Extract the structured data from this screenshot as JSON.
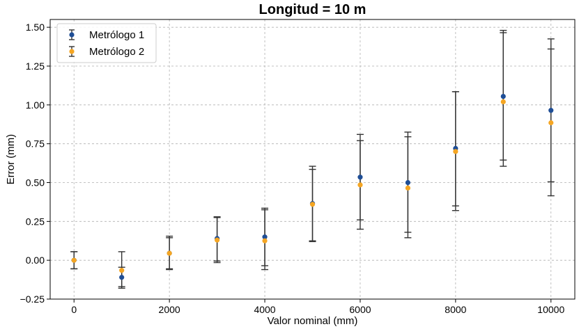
{
  "chart_data": {
    "type": "scatter",
    "title": "Longitud = 10 m",
    "xlabel": "Valor nominal (mm)",
    "ylabel": "Error (mm)",
    "xlim": [
      -500,
      10500
    ],
    "ylim": [
      -0.25,
      1.55
    ],
    "xticks": [
      0,
      2000,
      4000,
      6000,
      8000,
      10000
    ],
    "xtick_labels": [
      "0",
      "2000",
      "4000",
      "6000",
      "8000",
      "10000"
    ],
    "yticks": [
      -0.25,
      0,
      0.25,
      0.5,
      0.75,
      1.0,
      1.25,
      1.5
    ],
    "ytick_labels": [
      "−0.25",
      "0.00",
      "0.25",
      "0.50",
      "0.75",
      "1.00",
      "1.25",
      "1.50"
    ],
    "grid": true,
    "legend_position": "top-left",
    "x": [
      0,
      1000,
      2000,
      3000,
      4000,
      5000,
      6000,
      7000,
      8000,
      9000,
      10000
    ],
    "series": [
      {
        "name": "Metrólogo 1",
        "color": "#1f4e96",
        "y": [
          0.0,
          -0.11,
          0.045,
          0.14,
          0.15,
          0.365,
          0.535,
          0.5,
          0.72,
          1.055,
          0.965
        ],
        "err_low": [
          -0.055,
          -0.18,
          -0.055,
          -0.005,
          -0.035,
          0.125,
          0.26,
          0.18,
          0.35,
          0.645,
          0.505
        ],
        "err_high": [
          0.055,
          -0.045,
          0.145,
          0.28,
          0.335,
          0.605,
          0.81,
          0.825,
          1.085,
          1.465,
          1.425
        ]
      },
      {
        "name": "Metrólogo 2",
        "color": "#f5a623",
        "y": [
          0.0,
          -0.065,
          0.045,
          0.13,
          0.125,
          0.36,
          0.485,
          0.465,
          0.7,
          1.02,
          0.885
        ],
        "err_low": [
          -0.055,
          -0.17,
          -0.06,
          -0.015,
          -0.06,
          0.12,
          0.2,
          0.145,
          0.32,
          0.605,
          0.415
        ],
        "err_high": [
          0.055,
          0.055,
          0.155,
          0.275,
          0.325,
          0.585,
          0.77,
          0.795,
          1.085,
          1.48,
          1.36
        ]
      }
    ]
  }
}
